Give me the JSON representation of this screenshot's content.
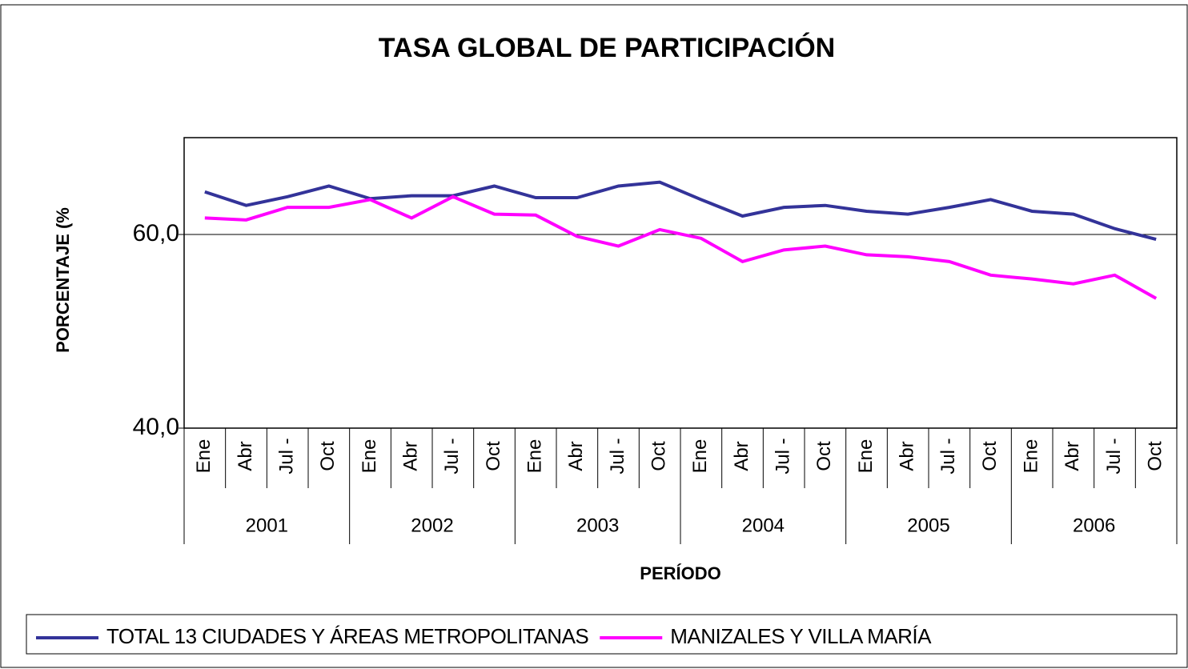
{
  "chart_data": {
    "type": "line",
    "title": "TASA GLOBAL DE PARTICIPACIÓN",
    "y_label": "PORCENTAJE (%",
    "x_label": "PERÍODO",
    "categories": [
      "Ene",
      "Abr",
      "Jul -",
      "Oct",
      "Ene",
      "Abr",
      "Jul -",
      "Oct",
      "Ene",
      "Abr",
      "Jul -",
      "Oct",
      "Ene",
      "Abr",
      "Jul -",
      "Oct",
      "Ene",
      "Abr",
      "Jul -",
      "Oct",
      "Ene",
      "Abr",
      "Jul -",
      "Oct"
    ],
    "category_groups": [
      "2001",
      "2002",
      "2003",
      "2004",
      "2005",
      "2006"
    ],
    "series": [
      {
        "name": "TOTAL 13 CIUDADES Y ÁREAS METROPOLITANAS",
        "color": "#333399",
        "values": [
          64.4,
          63.0,
          63.9,
          65.0,
          63.7,
          64.0,
          64.0,
          65.0,
          63.8,
          63.8,
          65.0,
          65.4,
          63.6,
          61.9,
          62.8,
          63.0,
          62.4,
          62.1,
          62.8,
          63.6,
          62.4,
          62.1,
          60.6,
          59.5
        ]
      },
      {
        "name": "MANIZALES Y VILLA MARÍA",
        "color": "#ff00ff",
        "values": [
          61.7,
          61.5,
          62.8,
          62.8,
          63.6,
          61.7,
          63.9,
          62.1,
          62.0,
          59.8,
          58.8,
          60.5,
          59.6,
          57.2,
          58.4,
          58.8,
          57.9,
          57.7,
          57.2,
          55.8,
          55.4,
          54.9,
          55.8,
          53.4
        ]
      }
    ],
    "ylim": [
      40,
      70
    ],
    "yticks": [
      {
        "value": 40,
        "label": "40,0"
      },
      {
        "value": 60,
        "label": "60,0"
      }
    ],
    "grid": true
  }
}
